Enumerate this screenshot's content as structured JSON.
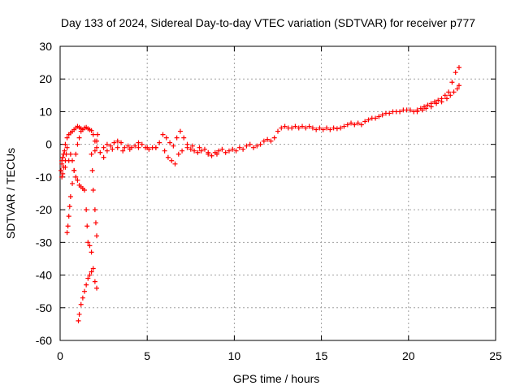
{
  "chart_data": {
    "type": "scatter",
    "title": "Day 133 of 2024, Sidereal Day-to-day VTEC variation (SDTVAR) for receiver p777",
    "xlabel": "GPS time / hours",
    "ylabel": "SDTVAR / TECUs",
    "xlim": [
      0,
      25
    ],
    "ylim": [
      -60,
      30
    ],
    "xticks": [
      "0",
      "5",
      "10",
      "15",
      "20",
      "25"
    ],
    "yticks": [
      "30",
      "20",
      "10",
      "0",
      "-10",
      "-20",
      "-30",
      "-40",
      "-50",
      "-60"
    ],
    "grid": true,
    "marker": "+",
    "color": "#ff0000",
    "series": [
      {
        "name": "main-trend",
        "points": [
          [
            0.1,
            -5
          ],
          [
            0.2,
            -3
          ],
          [
            0.3,
            0
          ],
          [
            0.4,
            2
          ],
          [
            0.5,
            3
          ],
          [
            0.6,
            3.5
          ],
          [
            0.7,
            4
          ],
          [
            0.8,
            4.5
          ],
          [
            0.9,
            5
          ],
          [
            1.0,
            5.5
          ],
          [
            1.1,
            5.2
          ],
          [
            1.2,
            4.8
          ],
          [
            1.3,
            4.5
          ],
          [
            1.4,
            5
          ],
          [
            1.5,
            5.2
          ],
          [
            1.6,
            4.8
          ],
          [
            1.7,
            4.5
          ],
          [
            1.8,
            4.2
          ],
          [
            1.9,
            3
          ],
          [
            2.0,
            1
          ],
          [
            2.1,
            -1
          ],
          [
            2.3,
            -2.5
          ],
          [
            2.5,
            -1
          ],
          [
            2.7,
            0
          ],
          [
            2.9,
            -0.5
          ],
          [
            3.1,
            0.5
          ],
          [
            3.3,
            1
          ],
          [
            3.5,
            0.5
          ],
          [
            3.7,
            -1
          ],
          [
            3.9,
            -0.5
          ],
          [
            4.1,
            -1
          ],
          [
            4.3,
            -0.5
          ],
          [
            4.5,
            0.5
          ],
          [
            4.7,
            0
          ],
          [
            4.9,
            -1
          ],
          [
            5.1,
            -1.5
          ],
          [
            5.3,
            -1
          ],
          [
            5.5,
            -1
          ],
          [
            5.7,
            0.5
          ],
          [
            5.9,
            3
          ],
          [
            6.1,
            2
          ],
          [
            6.3,
            0.5
          ],
          [
            6.5,
            -0.5
          ],
          [
            6.7,
            2
          ],
          [
            6.9,
            4
          ],
          [
            7.1,
            2
          ],
          [
            7.3,
            0
          ],
          [
            7.5,
            -1.5
          ],
          [
            7.7,
            -2
          ],
          [
            7.9,
            -2.5
          ],
          [
            8.1,
            -2
          ],
          [
            8.3,
            -1.5
          ],
          [
            8.5,
            -3
          ],
          [
            8.7,
            -3.5
          ],
          [
            8.9,
            -2.5
          ],
          [
            9.1,
            -2
          ],
          [
            9.3,
            -1.5
          ],
          [
            9.5,
            -2.5
          ],
          [
            9.7,
            -2
          ],
          [
            9.9,
            -1.5
          ],
          [
            10.1,
            -2
          ],
          [
            10.3,
            -1
          ],
          [
            10.5,
            -1.5
          ],
          [
            10.7,
            -0.5
          ],
          [
            10.9,
            0
          ],
          [
            11.1,
            -1
          ],
          [
            11.3,
            -0.5
          ],
          [
            11.5,
            0
          ],
          [
            11.7,
            1
          ],
          [
            11.9,
            1.5
          ],
          [
            12.1,
            1
          ],
          [
            12.3,
            2
          ],
          [
            12.5,
            4
          ],
          [
            12.7,
            5
          ],
          [
            12.9,
            5.5
          ],
          [
            13.1,
            5
          ],
          [
            13.3,
            5
          ],
          [
            13.5,
            5.5
          ],
          [
            13.7,
            5
          ],
          [
            13.9,
            5.5
          ],
          [
            14.1,
            5
          ],
          [
            14.3,
            5.5
          ],
          [
            14.5,
            5
          ],
          [
            14.7,
            4.5
          ],
          [
            14.9,
            5
          ],
          [
            15.1,
            4.5
          ],
          [
            15.3,
            5
          ],
          [
            15.5,
            4.5
          ],
          [
            15.7,
            5
          ],
          [
            15.9,
            4.8
          ],
          [
            16.1,
            5
          ],
          [
            16.3,
            5.5
          ],
          [
            16.5,
            6
          ],
          [
            16.7,
            6.5
          ],
          [
            16.9,
            6
          ],
          [
            17.1,
            6.5
          ],
          [
            17.3,
            6
          ],
          [
            17.5,
            7
          ],
          [
            17.7,
            7.5
          ],
          [
            17.9,
            8
          ],
          [
            18.1,
            8
          ],
          [
            18.3,
            8.5
          ],
          [
            18.5,
            9
          ],
          [
            18.7,
            9.5
          ],
          [
            18.9,
            9.5
          ],
          [
            19.1,
            10
          ],
          [
            19.3,
            10
          ],
          [
            19.5,
            10
          ],
          [
            19.7,
            10.5
          ],
          [
            19.9,
            10.5
          ],
          [
            20.1,
            10.5
          ],
          [
            20.3,
            10
          ],
          [
            20.5,
            10.5
          ],
          [
            20.7,
            11
          ],
          [
            20.9,
            11.5
          ],
          [
            21.1,
            12
          ],
          [
            21.3,
            12.5
          ],
          [
            21.5,
            13
          ],
          [
            21.7,
            13.5
          ],
          [
            21.9,
            14
          ],
          [
            22.1,
            15
          ],
          [
            22.3,
            16
          ],
          [
            22.5,
            19
          ],
          [
            22.7,
            22
          ],
          [
            22.9,
            23.5
          ]
        ]
      },
      {
        "name": "late-lower-branch",
        "points": [
          [
            20.5,
            10
          ],
          [
            20.8,
            10.5
          ],
          [
            21.0,
            11
          ],
          [
            21.3,
            11.5
          ],
          [
            21.6,
            12.5
          ],
          [
            21.9,
            13
          ],
          [
            22.2,
            14
          ],
          [
            22.4,
            15
          ],
          [
            22.6,
            16
          ],
          [
            22.8,
            17
          ],
          [
            22.9,
            18
          ]
        ]
      },
      {
        "name": "early-lower-branch",
        "points": [
          [
            2.5,
            -4
          ],
          [
            2.7,
            -2
          ],
          [
            3.0,
            -1.5
          ],
          [
            3.3,
            -1
          ],
          [
            3.6,
            -2
          ],
          [
            4.0,
            -1.5
          ],
          [
            4.5,
            -1
          ],
          [
            5.0,
            -1
          ],
          [
            5.5,
            -1
          ],
          [
            6.0,
            -2
          ],
          [
            6.2,
            -4
          ],
          [
            6.4,
            -5
          ],
          [
            6.6,
            -6
          ],
          [
            6.8,
            -3
          ],
          [
            7.0,
            -2
          ],
          [
            7.3,
            -1
          ],
          [
            7.6,
            -0.5
          ],
          [
            8.0,
            -1
          ],
          [
            8.5,
            -2.5
          ],
          [
            9.0,
            -3
          ]
        ]
      },
      {
        "name": "descending-arc",
        "points": [
          [
            0.3,
            -7
          ],
          [
            0.5,
            -5
          ],
          [
            0.6,
            -3
          ],
          [
            0.7,
            -5
          ],
          [
            0.8,
            -8
          ],
          [
            0.9,
            -10
          ],
          [
            1.0,
            -11
          ],
          [
            1.1,
            -12.5
          ],
          [
            1.2,
            -13
          ],
          [
            1.3,
            -13.5
          ],
          [
            1.4,
            -14
          ],
          [
            1.5,
            -20
          ],
          [
            1.55,
            -25
          ],
          [
            1.6,
            -30
          ],
          [
            1.7,
            -31
          ],
          [
            1.8,
            -33
          ],
          [
            1.9,
            -38
          ],
          [
            2.0,
            -42
          ],
          [
            2.1,
            -44
          ]
        ]
      },
      {
        "name": "dip-to-minimum",
        "points": [
          [
            1.8,
            -39
          ],
          [
            1.7,
            -40
          ],
          [
            1.6,
            -41
          ],
          [
            1.5,
            -43
          ],
          [
            1.4,
            -45
          ],
          [
            1.3,
            -47
          ],
          [
            1.2,
            -49
          ],
          [
            1.1,
            -52
          ],
          [
            1.05,
            -54
          ]
        ]
      },
      {
        "name": "rising-arc",
        "points": [
          [
            0.4,
            -27
          ],
          [
            0.45,
            -25
          ],
          [
            0.5,
            -22
          ],
          [
            0.55,
            -19
          ],
          [
            0.6,
            -16
          ],
          [
            0.7,
            -12
          ],
          [
            0.8,
            -8
          ],
          [
            0.9,
            -3
          ],
          [
            1.0,
            0
          ],
          [
            1.1,
            2
          ],
          [
            1.2,
            4
          ]
        ]
      },
      {
        "name": "right-arc",
        "points": [
          [
            1.8,
            -3
          ],
          [
            1.85,
            -8
          ],
          [
            1.9,
            -14
          ],
          [
            2.0,
            -20
          ],
          [
            2.05,
            -24
          ],
          [
            2.1,
            -28
          ],
          [
            2.0,
            -2
          ],
          [
            2.1,
            1
          ],
          [
            2.15,
            3
          ]
        ]
      },
      {
        "name": "start-scatter",
        "points": [
          [
            0.05,
            -8
          ],
          [
            0.1,
            -10
          ],
          [
            0.15,
            -9
          ],
          [
            0.2,
            -7
          ],
          [
            0.1,
            -6
          ],
          [
            0.15,
            -4
          ],
          [
            0.25,
            -2
          ],
          [
            0.3,
            -5
          ],
          [
            0.35,
            -3
          ],
          [
            0.4,
            -1
          ]
        ]
      }
    ]
  }
}
